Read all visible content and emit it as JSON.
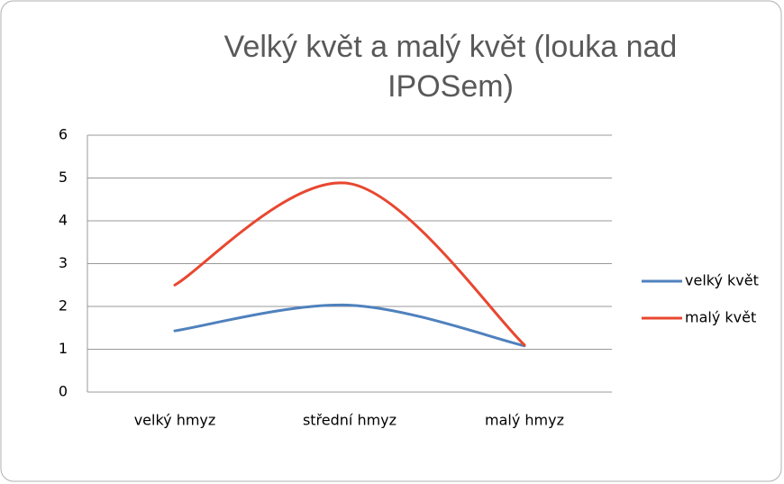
{
  "chart_data": {
    "type": "line",
    "title": "Velký květ a malý květ (louka nad IPOSem)",
    "categories": [
      "velký hmyz",
      "střední hmyz",
      "malý hmyz"
    ],
    "series": [
      {
        "name": "velký květ",
        "color": "#4f81bd",
        "values": [
          1.43,
          2.03,
          1.08
        ]
      },
      {
        "name": "malý květ",
        "color": "#e8472f",
        "values": [
          2.5,
          4.87,
          1.1
        ]
      }
    ],
    "ylim": [
      0,
      6
    ],
    "yticks": [
      0,
      1,
      2,
      3,
      4,
      5,
      6
    ],
    "grid": true,
    "legend": "right",
    "smooth": true
  }
}
